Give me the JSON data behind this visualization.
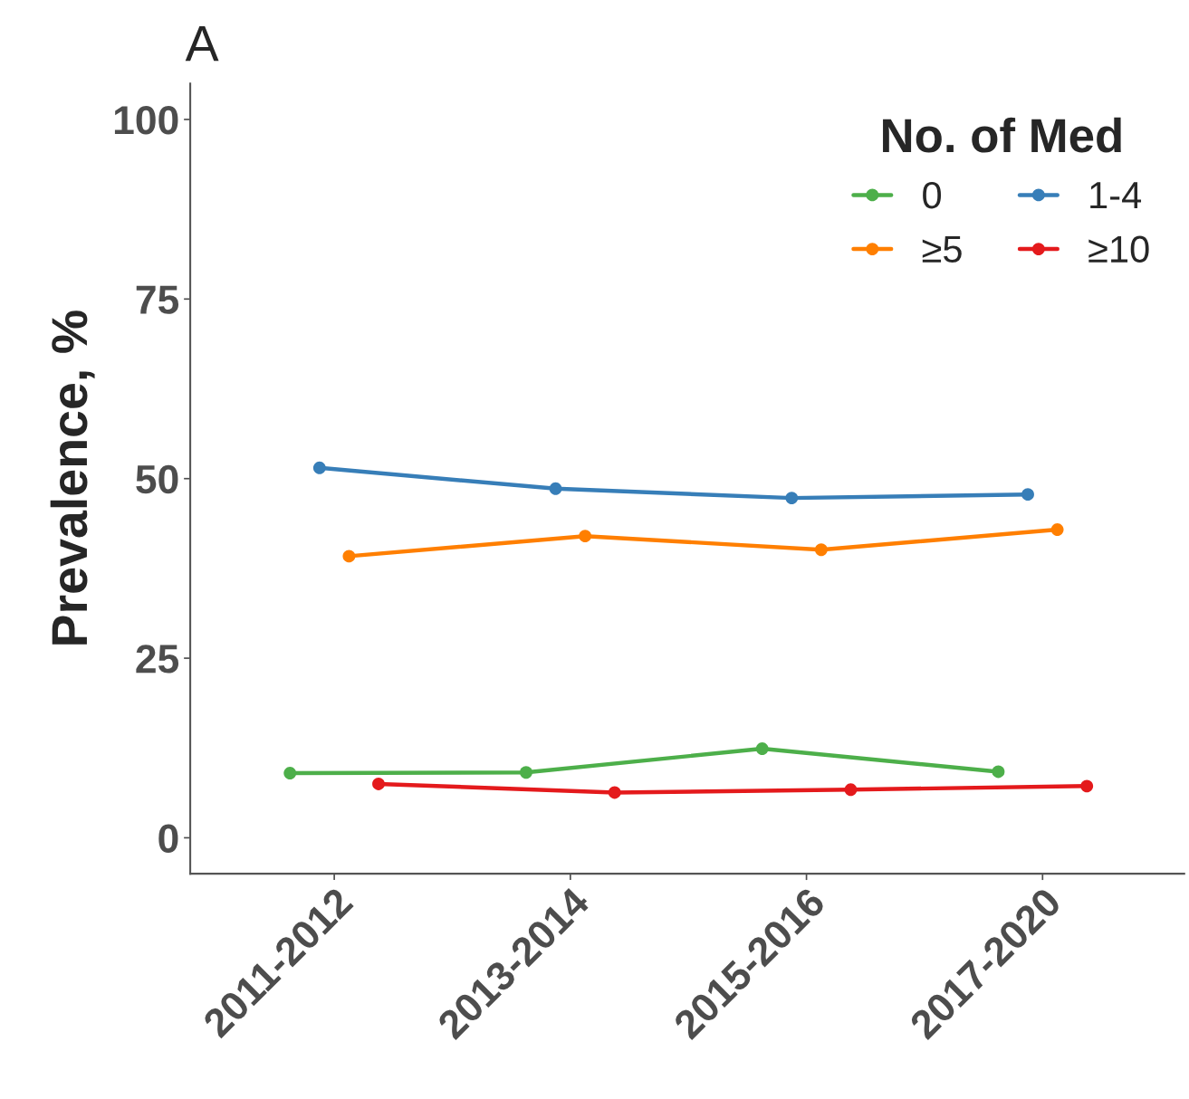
{
  "chart_data": {
    "type": "line",
    "title": "A",
    "ylabel": "Prevalence, %",
    "legend_title": "No. of Med",
    "categories": [
      "2011-2012",
      "2013-2014",
      "2015-2016",
      "2017-2020"
    ],
    "series": [
      {
        "name": "0",
        "color": "#4daf4a",
        "values": [
          9.0,
          9.1,
          12.4,
          9.2
        ]
      },
      {
        "name": "1-4",
        "color": "#377eb8",
        "values": [
          51.5,
          48.6,
          47.3,
          47.8
        ]
      },
      {
        "name": "≥5",
        "color": "#ff7f00",
        "values": [
          39.2,
          42.0,
          40.1,
          42.9
        ]
      },
      {
        "name": "≥10",
        "color": "#e41a1c",
        "values": [
          7.5,
          6.3,
          6.7,
          7.2
        ]
      }
    ],
    "ylim": [
      -5,
      105
    ],
    "yticks": [
      0,
      25,
      50,
      75,
      100
    ],
    "grid": false,
    "legend": "top right",
    "marker": "circle",
    "line_style": "solid"
  }
}
